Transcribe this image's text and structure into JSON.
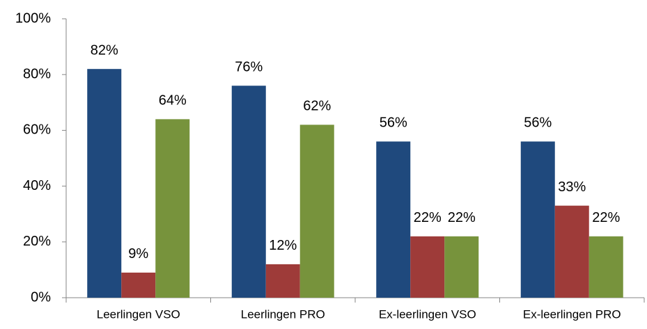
{
  "chart_data": {
    "type": "bar",
    "categories": [
      "Leerlingen VSO",
      "Leerlingen PRO",
      "Ex-leerlingen VSO",
      "Ex-leerlingen PRO"
    ],
    "series": [
      {
        "color": "#1f497d",
        "values": [
          82,
          76,
          56,
          56
        ],
        "value_labels": [
          "82%",
          "76%",
          "56%",
          "56%"
        ]
      },
      {
        "color": "#9e3b39",
        "values": [
          9,
          12,
          22,
          33
        ],
        "value_labels": [
          "9%",
          "12%",
          "22%",
          "33%"
        ]
      },
      {
        "color": "#77933c",
        "values": [
          64,
          62,
          22,
          22
        ],
        "value_labels": [
          "64%",
          "62%",
          "22%",
          "22%"
        ]
      }
    ],
    "ylim": [
      0,
      100
    ],
    "yticks": [
      {
        "value": 0,
        "label": "0%"
      },
      {
        "value": 20,
        "label": "20%"
      },
      {
        "value": 40,
        "label": "40%"
      },
      {
        "value": 60,
        "label": "60%"
      },
      {
        "value": 80,
        "label": "80%"
      },
      {
        "value": 100,
        "label": "100%"
      }
    ],
    "grid": false
  }
}
